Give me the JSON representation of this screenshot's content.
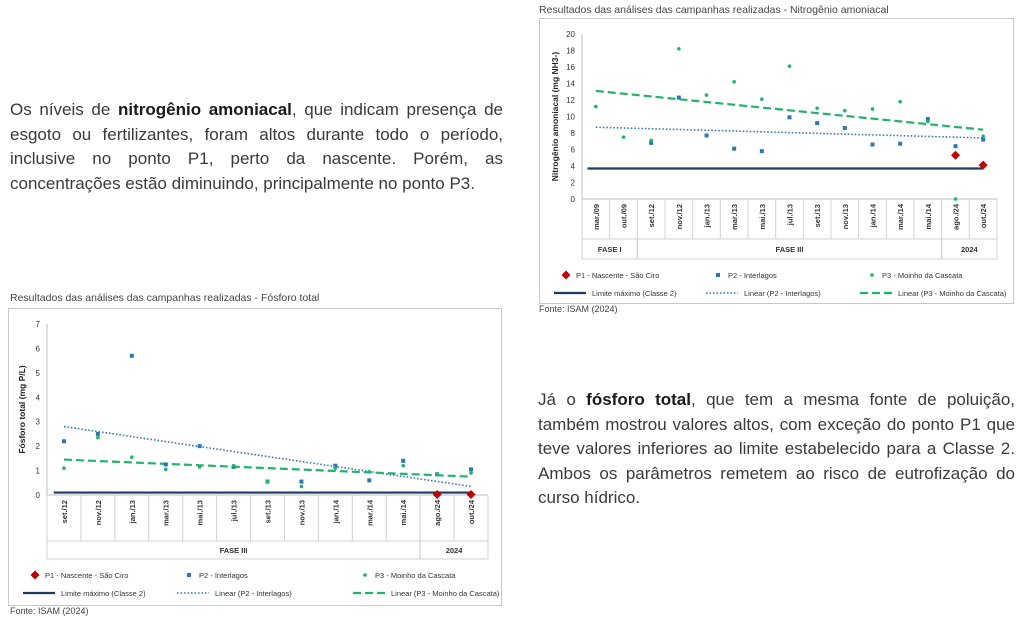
{
  "paragraph1": {
    "pre": "Os níveis de ",
    "bold": "nitrogênio amoniacal",
    "post": ", que indicam presença de esgoto ou fertilizantes, foram altos durante todo o período, inclusive no ponto P1, perto da nascente. Porém, as concentrações estão diminuindo, principalmente no ponto P3."
  },
  "paragraph2": {
    "pre": "Já o ",
    "bold": "fósforo total",
    "post": ", que tem a mesma fonte de poluição, também mostrou valores altos, com exceção do ponto P1 que teve valores inferiores ao limite estabelecido para a Classe 2. Ambos os parâmetros remetem ao risco de eutrofização do curso hídrico."
  },
  "chart_data": [
    {
      "type": "scatter",
      "title": "Resultados das análises das campanhas realizadas - Nitrogênio amoniacal",
      "ylabel": "Nitrogênio amoniacal (mg NH3-)",
      "ylim": [
        0,
        20
      ],
      "yticks": [
        0,
        2,
        4,
        6,
        8,
        10,
        12,
        14,
        16,
        18,
        20
      ],
      "categories": [
        "mar./09",
        "out./09",
        "set./12",
        "nov./12",
        "jan./13",
        "mar./13",
        "mai./13",
        "jul./13",
        "set./13",
        "nov./13",
        "jan./14",
        "mar./14",
        "mai./14",
        "ago./24",
        "out./24"
      ],
      "groups": [
        {
          "label": "FASE I",
          "from": 0,
          "to": 1
        },
        {
          "label": "FASE III",
          "from": 2,
          "to": 12
        },
        {
          "label": "2024",
          "from": 13,
          "to": 14
        }
      ],
      "series": [
        {
          "name": "P1 - Nascente - São Ciro",
          "color": "#c00000",
          "marker": "diamond",
          "values": [
            null,
            null,
            null,
            null,
            null,
            null,
            null,
            null,
            null,
            null,
            null,
            null,
            null,
            5.3,
            4.1
          ]
        },
        {
          "name": "P2 - Interlagos",
          "color": "#2e75b6",
          "marker": "square",
          "values": [
            null,
            null,
            6.8,
            12.3,
            7.7,
            6.1,
            5.8,
            9.9,
            9.2,
            8.6,
            6.6,
            6.7,
            9.7,
            6.4,
            7.2
          ]
        },
        {
          "name": "P3 - Moinho da Cascata",
          "color": "#21b36b",
          "marker": "dot",
          "values": [
            11.2,
            7.5,
            7.1,
            18.2,
            12.6,
            14.2,
            12.1,
            16.1,
            11.0,
            10.7,
            10.9,
            11.8,
            9.4,
            0.0,
            7.6
          ]
        }
      ],
      "limit": {
        "name": "Limite máximo (Classe 2)",
        "value": 3.7,
        "color": "#1f3864"
      },
      "trendlines": [
        {
          "name": "Linear (P2 - Interlagos)",
          "color": "#2e75b6",
          "style": "dotted",
          "start": 8.7,
          "end": 7.4
        },
        {
          "name": "Linear (P3 - Moinho da Cascata)",
          "color": "#21b36b",
          "style": "dashed",
          "start": 13.1,
          "end": 8.4
        }
      ],
      "legend_position": "bottom",
      "source": "Fonte: ISAM (2024)"
    },
    {
      "type": "scatter",
      "title": "Resultados das análises das campanhas realizadas - Fósforo total",
      "ylabel": "Fósforo total (mg P/L)",
      "ylim": [
        0,
        7
      ],
      "yticks": [
        0,
        1,
        2,
        3,
        4,
        5,
        6,
        7
      ],
      "categories": [
        "set./12",
        "nov./12",
        "jan./13",
        "mar./13",
        "mai./13",
        "jul./13",
        "set./13",
        "nov./13",
        "jan./14",
        "mar./14",
        "mai./14",
        "ago./24",
        "out./24"
      ],
      "groups": [
        {
          "label": "FASE III",
          "from": 0,
          "to": 10
        },
        {
          "label": "2024",
          "from": 11,
          "to": 12
        }
      ],
      "series": [
        {
          "name": "P1 - Nascente - São Ciro",
          "color": "#c00000",
          "marker": "diamond",
          "values": [
            null,
            null,
            null,
            null,
            null,
            null,
            null,
            null,
            null,
            null,
            null,
            0.02,
            0.02
          ]
        },
        {
          "name": "P2 - Interlagos",
          "color": "#2e75b6",
          "marker": "square",
          "values": [
            2.2,
            2.5,
            5.7,
            1.25,
            2.0,
            1.15,
            0.55,
            0.55,
            1.2,
            0.6,
            1.4,
            0.85,
            1.05
          ]
        },
        {
          "name": "P3 - Moinho da Cascata",
          "color": "#21b36b",
          "marker": "dot",
          "values": [
            1.1,
            2.35,
            1.55,
            1.05,
            1.15,
            1.2,
            0.55,
            0.35,
            1.1,
            0.95,
            1.2,
            0.85,
            0.9
          ]
        }
      ],
      "limit": {
        "name": "Limite máximo (Classe 2)",
        "value": 0.1,
        "color": "#1f3864"
      },
      "trendlines": [
        {
          "name": "Linear (P2 - Interlagos)",
          "color": "#2e75b6",
          "style": "dotted",
          "start": 2.8,
          "end": 0.35
        },
        {
          "name": "Linear (P3 - Moinho da Cascata)",
          "color": "#21b36b",
          "style": "dashed",
          "start": 1.45,
          "end": 0.75
        }
      ],
      "legend_position": "bottom",
      "source": "Fonte: ISAM (2024)"
    }
  ]
}
